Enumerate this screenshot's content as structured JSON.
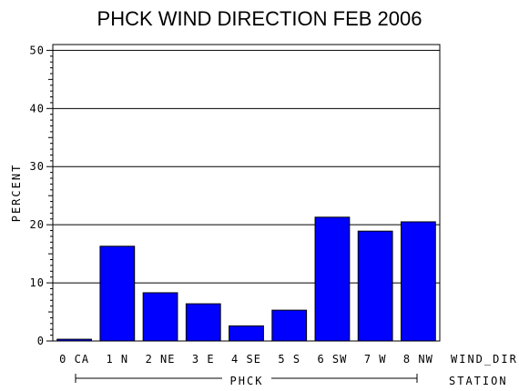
{
  "chart_data": {
    "type": "bar",
    "title": "PHCK WIND DIRECTION FEB 2006",
    "ylabel": "PERCENT",
    "xlabel": "WIND_DIR",
    "group_axis_label": "STATION",
    "group_label": "PHCK",
    "categories": [
      "0 CA",
      "1 N",
      "2 NE",
      "3 E",
      "4 SE",
      "5 S",
      "6 SW",
      "7 W",
      "8 NW"
    ],
    "values": [
      0.3,
      16.3,
      8.3,
      6.4,
      2.6,
      5.3,
      21.3,
      18.9,
      20.5
    ],
    "ylim": [
      0,
      51
    ],
    "yticks": [
      0,
      10,
      20,
      30,
      40,
      50
    ],
    "grid": true,
    "bar_color": "#0000ff"
  }
}
